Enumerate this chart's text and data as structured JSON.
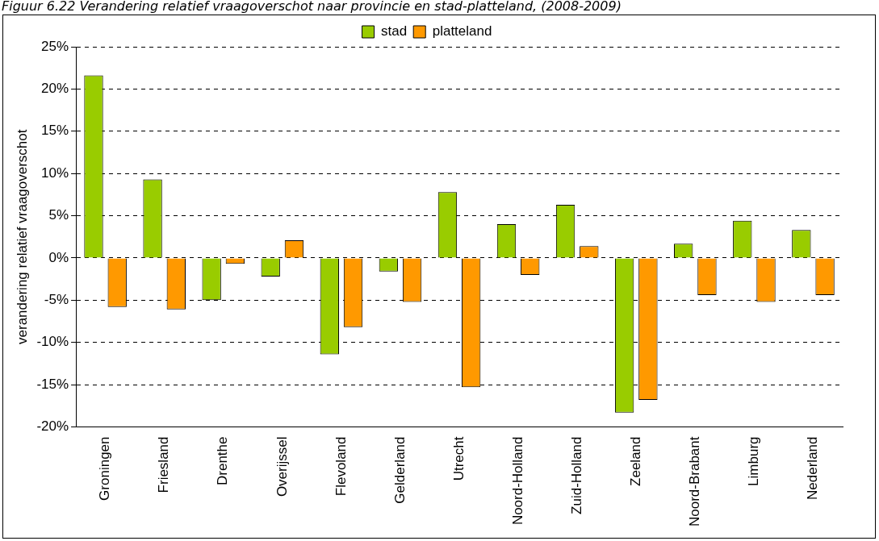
{
  "chart_data": {
    "type": "bar",
    "title": "Figuur 6.22  Verandering relatief vraagoverschot naar provincie en stad-platteland, (2008-2009)",
    "ylabel": "verandering relatief vraagoverschot",
    "categories": [
      "Groningen",
      "Friesland",
      "Drenthe",
      "Overijssel",
      "Flevoland",
      "Gelderland",
      "Utrecht",
      "Noord-Holland",
      "Zuid-Holland",
      "Zeeland",
      "Noord-Brabant",
      "Limburg",
      "Nederland"
    ],
    "series": [
      {
        "name": "stad",
        "color": "#99cc00",
        "values": [
          21.6,
          9.3,
          -5.0,
          -2.2,
          -11.4,
          -1.6,
          7.8,
          4.0,
          6.3,
          -18.3,
          1.7,
          4.4,
          3.3
        ]
      },
      {
        "name": "platteland",
        "color": "#ff9900",
        "values": [
          -5.8,
          -6.1,
          -0.7,
          2.1,
          -8.2,
          -5.2,
          -15.3,
          -2.0,
          1.4,
          -16.8,
          -4.4,
          -5.2,
          -4.4
        ]
      }
    ],
    "ylim": [
      -20,
      25
    ],
    "yticks": [
      {
        "value": -20,
        "label": "-20%"
      },
      {
        "value": -15,
        "label": "-15%"
      },
      {
        "value": -10,
        "label": "-10%"
      },
      {
        "value": -5,
        "label": "-5%"
      },
      {
        "value": 0,
        "label": "0%"
      },
      {
        "value": 5,
        "label": "5%"
      },
      {
        "value": 10,
        "label": "10%"
      },
      {
        "value": 15,
        "label": "15%"
      },
      {
        "value": 20,
        "label": "20%"
      },
      {
        "value": 25,
        "label": "25%"
      }
    ],
    "grid": "y",
    "legend": "top"
  }
}
